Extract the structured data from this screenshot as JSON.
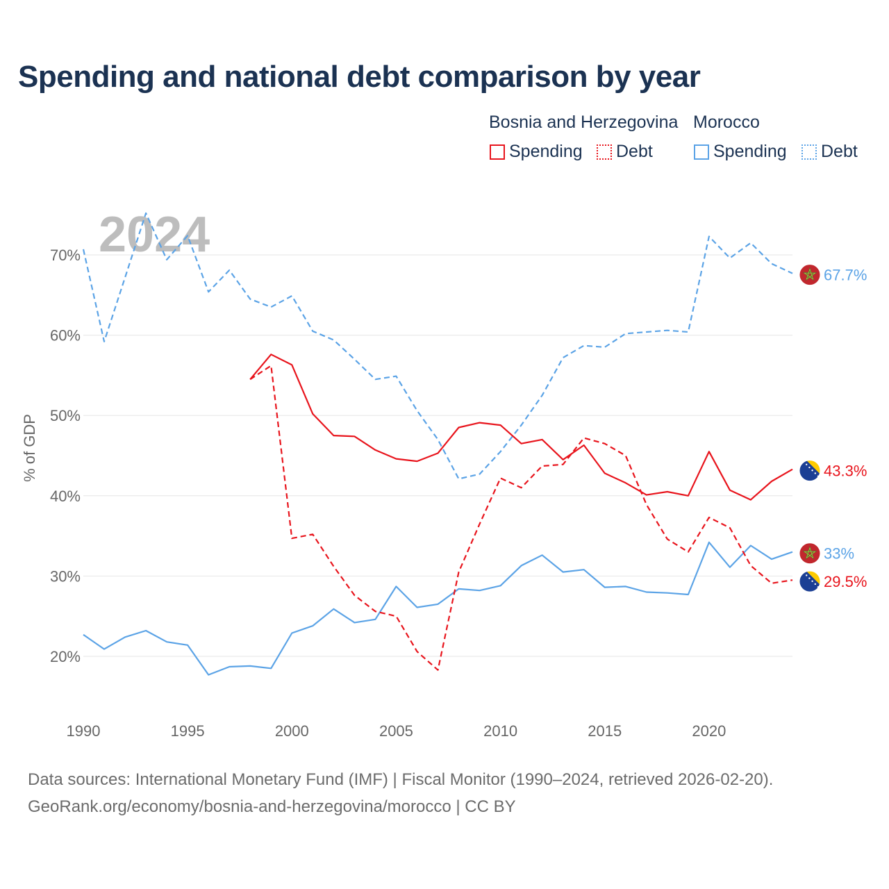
{
  "title": "Spending and national debt comparison by year",
  "legend": {
    "groups": [
      {
        "name": "Bosnia and Herzegovina",
        "items": [
          {
            "label": "Spending",
            "style": "solid",
            "color": "#e8141c"
          },
          {
            "label": "Debt",
            "style": "dotted",
            "color": "#e8141c"
          }
        ]
      },
      {
        "name": "Morocco",
        "items": [
          {
            "label": "Spending",
            "style": "solid",
            "color": "#5ba3e6"
          },
          {
            "label": "Debt",
            "style": "dotted",
            "color": "#5ba3e6"
          }
        ]
      }
    ]
  },
  "source_line1": "Data sources: International Monetary Fund (IMF) | Fiscal Monitor (1990–2024, retrieved 2026-02-20).",
  "source_line2": "GeoRank.org/economy/bosnia-and-herzegovina/morocco | CC BY",
  "chart_data": {
    "type": "line",
    "year_watermark": "2024",
    "ylabel": "% of GDP",
    "xlabel": "",
    "xlim": [
      1990,
      2024
    ],
    "ylim": [
      13,
      75
    ],
    "x_ticks": [
      1990,
      1995,
      2000,
      2005,
      2010,
      2015,
      2020
    ],
    "x_tick_labels": [
      "1990",
      "1995",
      "2000",
      "2005",
      "2010",
      "2015",
      "2020"
    ],
    "y_ticks": [
      20,
      30,
      40,
      50,
      60,
      70
    ],
    "y_tick_labels": [
      "20%",
      "30%",
      "40%",
      "50%",
      "60%",
      "70%"
    ],
    "series": [
      {
        "name": "Morocco Debt",
        "country": "Morocco",
        "metric": "Debt",
        "color": "#5ba3e6",
        "dash": "dashed",
        "end_label": "67.7%",
        "flag": "morocco",
        "x": [
          1990,
          1991,
          1992,
          1993,
          1994,
          1995,
          1996,
          1997,
          1998,
          1999,
          2000,
          2001,
          2002,
          2003,
          2004,
          2005,
          2006,
          2007,
          2008,
          2009,
          2010,
          2011,
          2012,
          2013,
          2014,
          2015,
          2016,
          2017,
          2018,
          2019,
          2020,
          2021,
          2022,
          2023,
          2024
        ],
        "values": [
          70.7,
          59.2,
          67.2,
          75.2,
          69.4,
          72.4,
          65.4,
          68.1,
          64.5,
          63.5,
          64.9,
          60.5,
          59.4,
          57.0,
          54.5,
          54.9,
          50.6,
          47.0,
          42.1,
          42.7,
          45.5,
          48.8,
          52.5,
          57.2,
          58.7,
          58.5,
          60.2,
          60.4,
          60.6,
          60.4,
          72.3,
          69.6,
          71.5,
          68.9,
          67.7
        ]
      },
      {
        "name": "Morocco Spending",
        "country": "Morocco",
        "metric": "Spending",
        "color": "#5ba3e6",
        "dash": "solid",
        "end_label": "33%",
        "flag": "morocco",
        "x": [
          1990,
          1991,
          1992,
          1993,
          1994,
          1995,
          1996,
          1997,
          1998,
          1999,
          2000,
          2001,
          2002,
          2003,
          2004,
          2005,
          2006,
          2007,
          2008,
          2009,
          2010,
          2011,
          2012,
          2013,
          2014,
          2015,
          2016,
          2017,
          2018,
          2019,
          2020,
          2021,
          2022,
          2023,
          2024
        ],
        "values": [
          22.7,
          20.9,
          22.4,
          23.2,
          21.8,
          21.4,
          17.7,
          18.7,
          18.8,
          18.5,
          22.9,
          23.8,
          25.9,
          24.2,
          24.6,
          28.7,
          26.1,
          26.5,
          28.4,
          28.2,
          28.8,
          31.3,
          32.6,
          30.5,
          30.8,
          28.6,
          28.7,
          28.0,
          27.9,
          27.7,
          34.2,
          31.1,
          33.8,
          32.1,
          33.0
        ]
      },
      {
        "name": "Bosnia and Herzegovina Spending",
        "country": "Bosnia and Herzegovina",
        "metric": "Spending",
        "color": "#e8141c",
        "dash": "solid",
        "end_label": "43.3%",
        "flag": "bosnia",
        "x": [
          1998,
          1999,
          2000,
          2001,
          2002,
          2003,
          2004,
          2005,
          2006,
          2007,
          2008,
          2009,
          2010,
          2011,
          2012,
          2013,
          2014,
          2015,
          2016,
          2017,
          2018,
          2019,
          2020,
          2021,
          2022,
          2023,
          2024
        ],
        "values": [
          54.5,
          57.6,
          56.3,
          50.2,
          47.5,
          47.4,
          45.7,
          44.6,
          44.3,
          45.3,
          48.5,
          49.1,
          48.8,
          46.5,
          47.0,
          44.5,
          46.3,
          42.8,
          41.6,
          40.1,
          40.5,
          40.0,
          45.5,
          40.7,
          39.5,
          41.8,
          43.3
        ]
      },
      {
        "name": "Bosnia and Herzegovina Debt",
        "country": "Bosnia and Herzegovina",
        "metric": "Debt",
        "color": "#e8141c",
        "dash": "dashed",
        "end_label": "29.5%",
        "flag": "bosnia",
        "x": [
          1998,
          1999,
          2000,
          2001,
          2002,
          2003,
          2004,
          2005,
          2006,
          2007,
          2008,
          2009,
          2010,
          2011,
          2012,
          2013,
          2014,
          2015,
          2016,
          2017,
          2018,
          2019,
          2020,
          2021,
          2022,
          2023,
          2024
        ],
        "values": [
          54.5,
          56.2,
          34.7,
          35.2,
          31.2,
          27.6,
          25.6,
          25.0,
          20.6,
          18.3,
          30.5,
          36.5,
          42.2,
          41.0,
          43.7,
          43.9,
          47.2,
          46.5,
          45.0,
          38.9,
          34.6,
          33.0,
          37.3,
          36.0,
          31.3,
          29.1,
          29.5
        ]
      }
    ]
  }
}
